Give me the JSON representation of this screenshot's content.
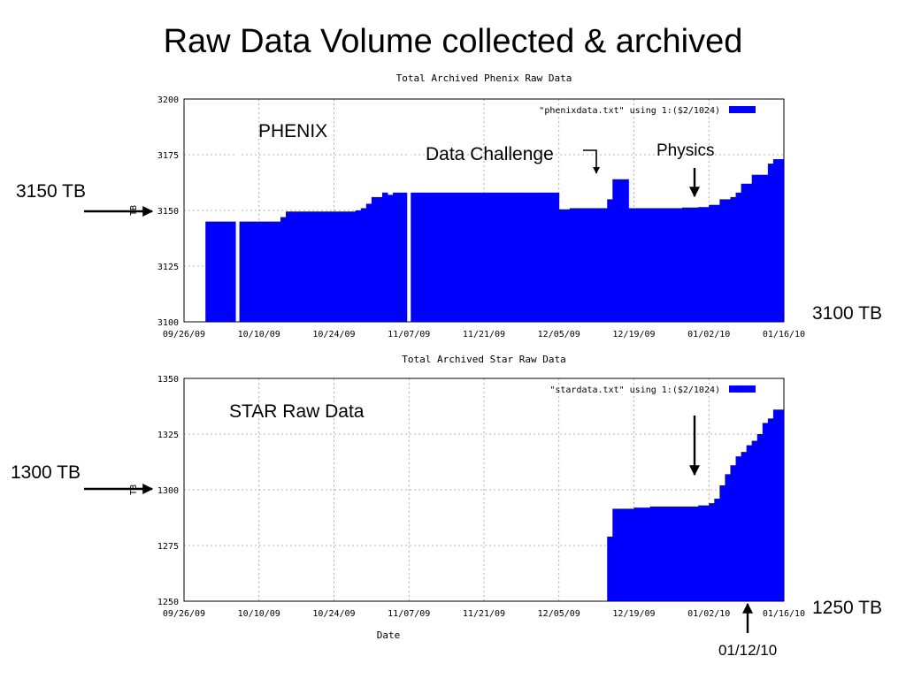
{
  "slide": {
    "title": "Raw Data Volume collected & archived"
  },
  "chart_data": [
    {
      "type": "area",
      "title": "Total Archived Phenix Raw Data",
      "ylabel": "TB",
      "xlabel": "",
      "ylim": [
        3100,
        3200
      ],
      "xlim": [
        "2009-09-26",
        "2010-01-16"
      ],
      "y_ticks": [
        "3100",
        "3125",
        "3150",
        "3175",
        "3200"
      ],
      "x_ticks": [
        "09/26/09",
        "10/10/09",
        "10/24/09",
        "11/07/09",
        "11/21/09",
        "12/05/09",
        "12/19/09",
        "01/02/10",
        "01/16/10"
      ],
      "grid": true,
      "legend_position": "top-right",
      "legend": [
        "\"phenixdata.txt\" using 1:($2/1024)"
      ],
      "color": "#0000ff",
      "x": [
        "2009-09-30",
        "2009-10-06",
        "2009-10-07",
        "2009-10-13",
        "2009-10-14",
        "2009-10-15",
        "2009-10-16",
        "2009-10-27",
        "2009-10-28",
        "2009-10-29",
        "2009-10-30",
        "2009-10-31",
        "2009-11-02",
        "2009-11-03",
        "2009-11-04",
        "2009-11-05",
        "2009-11-06",
        "2009-11-07",
        "2009-11-08",
        "2009-11-09",
        "2009-11-10",
        "2009-11-27",
        "2009-11-29",
        "2009-11-30",
        "2009-12-05",
        "2009-12-07",
        "2009-12-12",
        "2009-12-14",
        "2009-12-15",
        "2009-12-18",
        "2009-12-22",
        "2009-12-28",
        "2009-12-31",
        "2010-01-02",
        "2010-01-04",
        "2010-01-06",
        "2010-01-07",
        "2010-01-08",
        "2010-01-10",
        "2010-01-13",
        "2010-01-14",
        "2010-01-15"
      ],
      "values": [
        3145,
        3145,
        3145,
        3145,
        3147,
        3149.5,
        3149.5,
        3149.5,
        3150,
        3151,
        3153,
        3156,
        3158,
        3157,
        3158,
        3158,
        3158,
        3158,
        3158,
        3158,
        3158,
        3158,
        3158,
        3158,
        3150.5,
        3151,
        3151,
        3155,
        3164,
        3151,
        3151,
        3151.3,
        3151.5,
        3152.5,
        3155,
        3156,
        3158,
        3162,
        3166,
        3171,
        3173,
        3173
      ],
      "gaps": [
        "2009-10-06",
        "2009-11-07"
      ]
    },
    {
      "type": "area",
      "title": "Total Archived Star Raw Data",
      "ylabel": "TB",
      "xlabel": "Date",
      "ylim": [
        1250,
        1350
      ],
      "xlim": [
        "2009-09-26",
        "2010-01-16"
      ],
      "y_ticks": [
        "1250",
        "1275",
        "1300",
        "1325",
        "1350"
      ],
      "x_ticks": [
        "09/26/09",
        "10/10/09",
        "10/24/09",
        "11/07/09",
        "11/21/09",
        "12/05/09",
        "12/19/09",
        "01/02/10",
        "01/16/10"
      ],
      "grid": true,
      "legend_position": "top-right",
      "legend": [
        "\"stardata.txt\" using 1:($2/1024)"
      ],
      "color": "#0000ff",
      "x": [
        "2009-12-14",
        "2009-12-15",
        "2009-12-19",
        "2009-12-22",
        "2009-12-26",
        "2009-12-31",
        "2010-01-02",
        "2010-01-03",
        "2010-01-04",
        "2010-01-05",
        "2010-01-06",
        "2010-01-07",
        "2010-01-08",
        "2010-01-09",
        "2010-01-10",
        "2010-01-11",
        "2010-01-12",
        "2010-01-13",
        "2010-01-14",
        "2010-01-15"
      ],
      "values": [
        1279,
        1291.5,
        1292,
        1292.5,
        1292.5,
        1293,
        1294,
        1296,
        1302,
        1307,
        1311,
        1315,
        1317,
        1320,
        1322,
        1325,
        1330,
        1332,
        1336,
        1336
      ]
    }
  ],
  "annotations": {
    "phenix_label": "PHENIX",
    "data_challenge": "Data Challenge",
    "physics": "Physics",
    "phenix_level": "3150 TB",
    "phenix_base": "3100 TB",
    "star_label": "STAR Raw Data",
    "star_level": "1300 TB",
    "star_base": "1250 TB",
    "star_date": "01/12/10"
  }
}
